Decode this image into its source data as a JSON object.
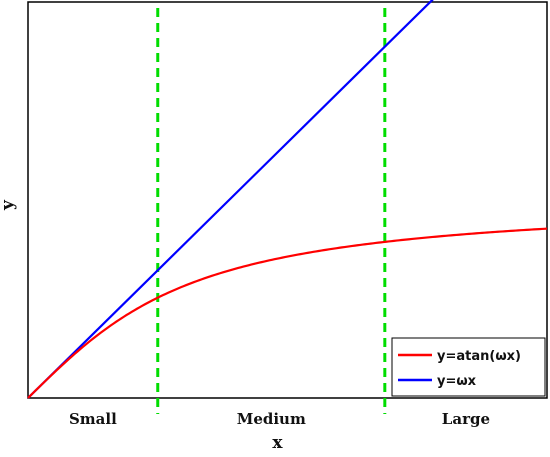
{
  "chart_data": {
    "type": "line",
    "xlabel": "x",
    "ylabel": "y",
    "x_regions": [
      "Small",
      "Medium",
      "Large"
    ],
    "region_boundaries": [
      1.0,
      2.75
    ],
    "xlim": [
      0,
      4.0
    ],
    "ylim": [
      0,
      3.1
    ],
    "omega": 1.0,
    "grid": false,
    "legend_placement": "bottom-right",
    "series": [
      {
        "name": "y=atan(ωx)",
        "color": "#ff0000",
        "x": [
          0,
          0.25,
          0.5,
          0.75,
          1.0,
          1.25,
          1.5,
          1.75,
          2.0,
          2.25,
          2.5,
          2.75,
          3.0,
          3.25,
          3.5,
          3.75,
          4.0
        ],
        "y": [
          0,
          0.245,
          0.464,
          0.644,
          0.785,
          0.896,
          0.983,
          1.052,
          1.107,
          1.153,
          1.19,
          1.222,
          1.249,
          1.273,
          1.292,
          1.31,
          1.326
        ]
      },
      {
        "name": "y=ωx",
        "color": "#0000ff",
        "x": [
          0,
          4.0
        ],
        "y": [
          0,
          4.0
        ]
      }
    ],
    "dashed_lines_color": "#00dd00"
  }
}
